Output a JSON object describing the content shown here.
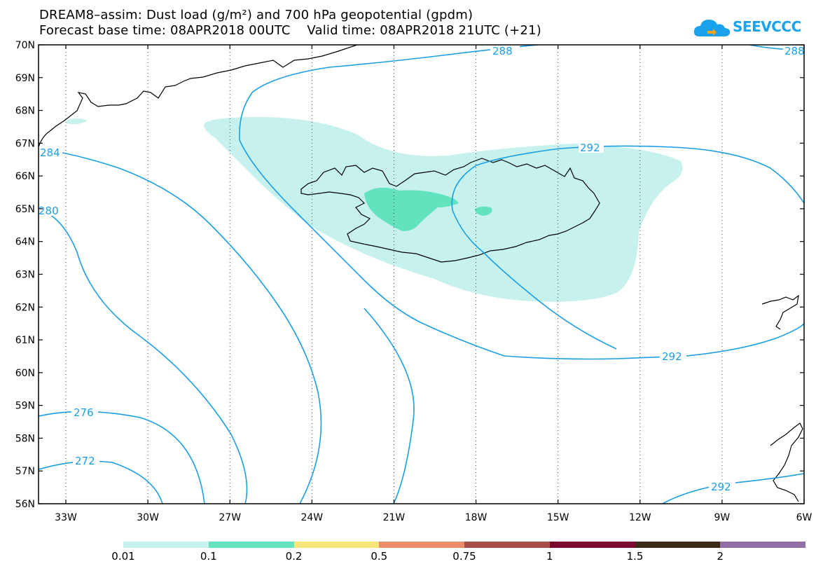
{
  "header": {
    "line1": "DREAM8–assim: Dust load (g/m²) and 700 hPa geopotential (gpdm)",
    "line2": "Forecast base time: 08APR2018 00UTC    Valid time: 08APR2018 21UTC (+21)"
  },
  "logo": {
    "text": "SEEVCCC"
  },
  "map": {
    "lat_labels": [
      "70N",
      "69N",
      "68N",
      "67N",
      "66N",
      "65N",
      "64N",
      "63N",
      "62N",
      "61N",
      "60N",
      "59N",
      "58N",
      "57N",
      "56N"
    ],
    "lon_labels": [
      "33W",
      "30W",
      "27W",
      "24W",
      "21W",
      "18W",
      "15W",
      "12W",
      "9W",
      "6W"
    ],
    "contour_labels": [
      "288",
      "288",
      "284",
      "292",
      "280",
      "292",
      "276",
      "272",
      "292"
    ],
    "colors": {
      "contour": "#1a9fe6",
      "dust_low": "#c6f1ec",
      "dust_mid": "#62e2bd"
    }
  },
  "colorbar": {
    "labels": [
      "0.01",
      "0.1",
      "0.2",
      "0.5",
      "0.75",
      "1",
      "1.5",
      "2"
    ],
    "colors": [
      "#c6f1ec",
      "#62e2bd",
      "#f7e77a",
      "#ea8c6a",
      "#a64f48",
      "#7a0a2e",
      "#3c2a18",
      "#8f6fa6"
    ]
  }
}
